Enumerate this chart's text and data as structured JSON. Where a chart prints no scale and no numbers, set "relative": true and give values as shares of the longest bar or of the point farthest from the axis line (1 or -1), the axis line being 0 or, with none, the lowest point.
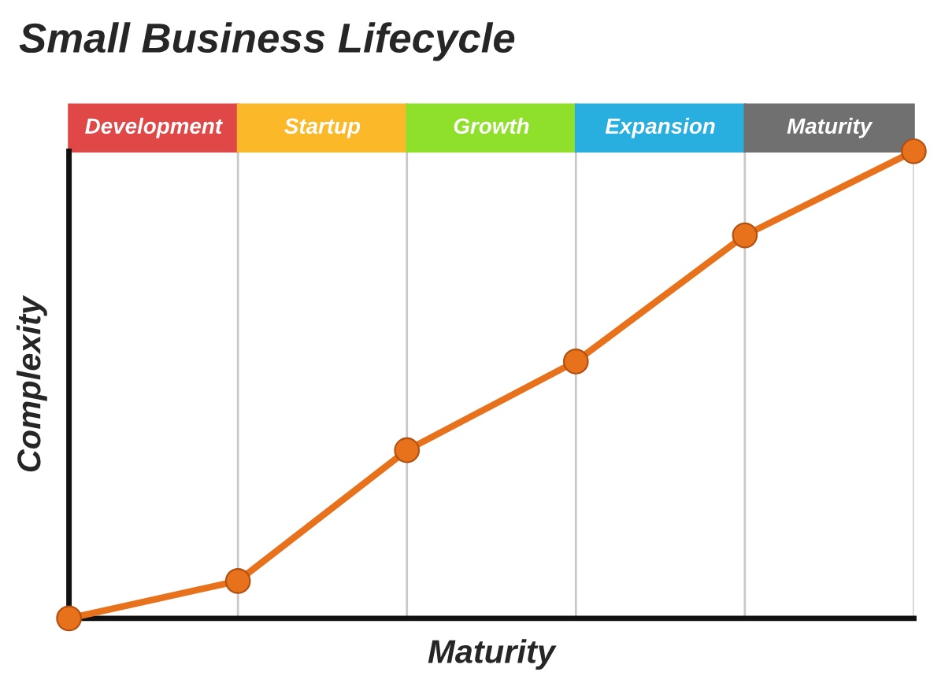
{
  "chart_data": {
    "type": "line",
    "title": "Small Business Lifecycle",
    "xlabel": "Maturity",
    "ylabel": "Complexity",
    "relative": true,
    "categories": [
      null,
      null,
      null,
      null,
      null,
      null
    ],
    "series": [
      {
        "color": "#e8711c",
        "values": [
          0.0,
          0.08,
          0.36,
          0.55,
          0.82,
          1.0
        ]
      }
    ],
    "marker": "circle",
    "annotations": [
      "Development",
      "Startup",
      "Growth",
      "Expansion",
      "Maturity"
    ],
    "grid": "x"
  }
}
